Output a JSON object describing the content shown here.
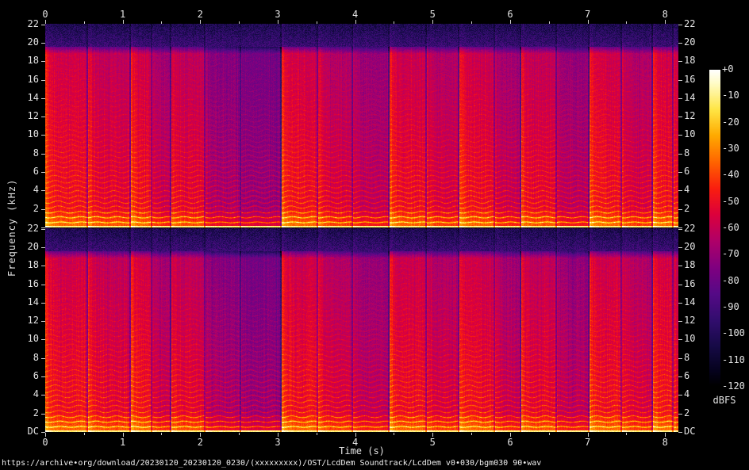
{
  "style": {
    "background": "#000000",
    "text_color": "#e4e4e4",
    "tick_color": "#cfcfcf"
  },
  "chart_data": {
    "type": "heatmap",
    "subtype": "stereo-audio-spectrogram",
    "title": "",
    "panels": [
      {
        "id": "channel-1"
      },
      {
        "id": "channel-2"
      }
    ],
    "x_axis": {
      "label": "Time (s)",
      "tick_labels": [
        "0",
        "1",
        "2",
        "3",
        "4",
        "5",
        "6",
        "7",
        "8"
      ],
      "tick_values_s": [
        0,
        1,
        2,
        3,
        4,
        5,
        6,
        7,
        8
      ],
      "minor_tick_step_s": 0.5,
      "range_s": [
        0,
        8.17
      ],
      "shown_top_and_bottom": true
    },
    "y_axis": {
      "label": "Frequency (kHz)",
      "tick_labels": [
        "22",
        "20",
        "18",
        "16",
        "14",
        "12",
        "10",
        "8",
        "6",
        "4",
        "2",
        "DC"
      ],
      "tick_values_khz": [
        22,
        20,
        18,
        16,
        14,
        12,
        10,
        8,
        6,
        4,
        2,
        0
      ],
      "range_khz": [
        0,
        22.05
      ],
      "mirrored_right": true
    },
    "colorbar": {
      "label": "dBFS",
      "tick_labels": [
        "+0",
        "-10",
        "-20",
        "-30",
        "-40",
        "-50",
        "-60",
        "-70",
        "-80",
        "-90",
        "-100",
        "-110",
        "-120"
      ],
      "tick_values_db": [
        0,
        -10,
        -20,
        -30,
        -40,
        -50,
        -60,
        -70,
        -80,
        -90,
        -100,
        -110,
        -120
      ],
      "range_db": [
        -120,
        0
      ],
      "gradient_stops": [
        {
          "u": 0.0,
          "color": "#000000"
        },
        {
          "u": 0.05,
          "color": "#06031e"
        },
        {
          "u": 0.125,
          "color": "#160a46"
        },
        {
          "u": 0.208,
          "color": "#320e6e"
        },
        {
          "u": 0.292,
          "color": "#560a87"
        },
        {
          "u": 0.375,
          "color": "#800080"
        },
        {
          "u": 0.458,
          "color": "#af0069"
        },
        {
          "u": 0.542,
          "color": "#dc003c"
        },
        {
          "u": 0.625,
          "color": "#fa1e0f"
        },
        {
          "u": 0.708,
          "color": "#ff6400"
        },
        {
          "u": 0.792,
          "color": "#ffaa00"
        },
        {
          "u": 0.875,
          "color": "#ffe646"
        },
        {
          "u": 0.958,
          "color": "#fffcc8"
        },
        {
          "u": 1.0,
          "color": "#ffffff"
        }
      ]
    },
    "spectrogram_model": {
      "noise_floor_band_khz": [
        19.55,
        22.05
      ],
      "noise_floor_level_db": -93,
      "body_level_db": -50,
      "harmonic_spacing_khz": 0.55,
      "dc_line_level_db": -11,
      "vibrato_visible": true,
      "segments": [
        {
          "start_s": 0.0,
          "gain_db": 1,
          "attack_db": 14
        },
        {
          "start_s": 0.55,
          "gain_db": -2,
          "attack_db": 12
        },
        {
          "start_s": 1.1,
          "gain_db": 1,
          "attack_db": 14
        },
        {
          "start_s": 1.38,
          "gain_db": -9,
          "attack_db": 6
        },
        {
          "start_s": 1.62,
          "gain_db": -3,
          "attack_db": 10
        },
        {
          "start_s": 2.06,
          "gain_db": -15,
          "attack_db": 8
        },
        {
          "start_s": 2.52,
          "gain_db": -19,
          "attack_db": 5
        },
        {
          "start_s": 3.05,
          "gain_db": 1,
          "attack_db": 14
        },
        {
          "start_s": 3.52,
          "gain_db": -5,
          "attack_db": 12
        },
        {
          "start_s": 3.97,
          "gain_db": -11,
          "attack_db": 7
        },
        {
          "start_s": 4.44,
          "gain_db": 0,
          "attack_db": 14
        },
        {
          "start_s": 4.92,
          "gain_db": -6,
          "attack_db": 10
        },
        {
          "start_s": 5.34,
          "gain_db": 0,
          "attack_db": 13
        },
        {
          "start_s": 5.8,
          "gain_db": -9,
          "attack_db": 8
        },
        {
          "start_s": 6.14,
          "gain_db": -2,
          "attack_db": 12
        },
        {
          "start_s": 6.6,
          "gain_db": -12,
          "attack_db": 7
        },
        {
          "start_s": 7.02,
          "gain_db": 1,
          "attack_db": 14
        },
        {
          "start_s": 7.44,
          "gain_db": -6,
          "attack_db": 10
        },
        {
          "start_s": 7.84,
          "gain_db": 1,
          "attack_db": 13
        },
        {
          "start_s": 8.1,
          "gain_db": -3,
          "attack_db": 8
        }
      ]
    }
  },
  "footer": {
    "url_text": "https://archive•org/download/20230120_20230120_0230/(xxxxxxxxx)/OST/LcdDem Soundtrack/LcdDem v0•030/bgm030 90•wav"
  }
}
